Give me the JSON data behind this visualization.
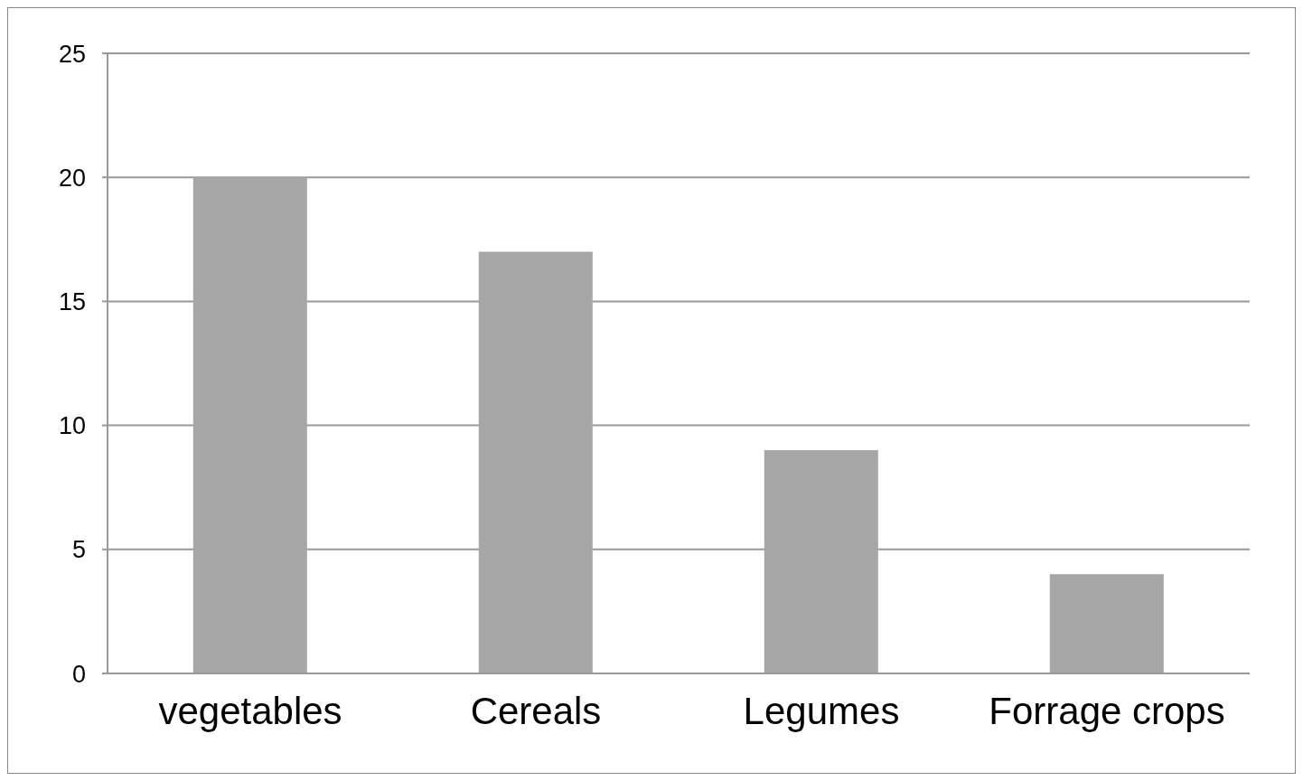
{
  "chart_data": {
    "type": "bar",
    "categories": [
      "vegetables",
      "Cereals",
      "Legumes",
      "Forrage crops"
    ],
    "values": [
      20,
      17,
      9,
      4
    ],
    "color": "#a6a6a6",
    "ylim": [
      0,
      25
    ],
    "yticks": [
      0,
      5,
      10,
      15,
      20,
      25
    ],
    "grid": "y"
  }
}
